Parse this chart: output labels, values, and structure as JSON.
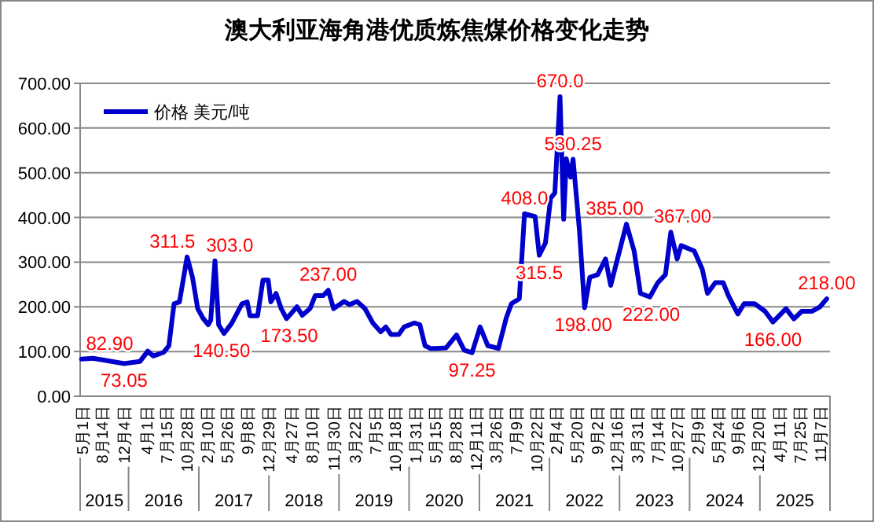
{
  "chart_data": {
    "type": "line",
    "title": "澳大利亚海角港优质炼焦煤价格变化走势",
    "x": [
      "2015-05-01",
      "2015-06-29",
      "2015-09-05",
      "2015-12-09",
      "2016-03-01",
      "2016-04-10",
      "2016-05-08",
      "2016-07-01",
      "2016-07-29",
      "2016-08-25",
      "2016-09-22",
      "2016-11-01",
      "2016-11-29",
      "2016-12-26",
      "2017-01-22",
      "2017-02-19",
      "2017-03-04",
      "2017-03-26",
      "2017-04-14",
      "2017-05-12",
      "2017-06-21",
      "2017-08-14",
      "2017-09-10",
      "2017-09-24",
      "2017-11-03",
      "2017-12-01",
      "2017-12-28",
      "2018-01-11",
      "2018-02-07",
      "2018-03-06",
      "2018-04-03",
      "2018-05-27",
      "2018-06-24",
      "2018-08-03",
      "2018-08-30",
      "2018-10-10",
      "2018-11-06",
      "2018-12-04",
      "2019-01-27",
      "2019-02-24",
      "2019-04-05",
      "2019-05-16",
      "2019-06-26",
      "2019-08-06",
      "2019-09-02",
      "2019-09-29",
      "2019-11-08",
      "2019-12-06",
      "2020-01-29",
      "2020-02-26",
      "2020-03-24",
      "2020-04-20",
      "2020-05-19",
      "2020-07-11",
      "2020-09-04",
      "2020-10-14",
      "2020-11-24",
      "2021-01-05",
      "2021-02-14",
      "2021-04-10",
      "2021-05-21",
      "2021-06-17",
      "2021-07-28",
      "2021-08-24",
      "2021-10-18",
      "2021-11-09",
      "2021-12-11",
      "2022-01-07",
      "2022-01-29",
      "2022-02-25",
      "2022-03-16",
      "2022-03-30",
      "2022-04-21",
      "2022-05-04",
      "2022-06-06",
      "2022-07-03",
      "2022-07-30",
      "2022-09-09",
      "2022-10-20",
      "2022-11-16",
      "2022-12-14",
      "2023-02-06",
      "2023-03-18",
      "2023-04-20",
      "2023-06-08",
      "2023-07-19",
      "2023-08-28",
      "2023-09-25",
      "2023-10-28",
      "2023-11-18",
      "2024-01-25",
      "2024-03-07",
      "2024-04-03",
      "2024-05-14",
      "2024-06-24",
      "2024-07-21",
      "2024-09-08",
      "2024-10-11",
      "2024-12-04",
      "2025-01-28",
      "2025-03-10",
      "2025-05-17",
      "2025-06-27",
      "2025-08-07",
      "2025-09-30",
      "2025-11-10",
      "2025-12-15"
    ],
    "series": [
      {
        "name": "价格 美元/吨",
        "color": "#0000cc",
        "values": [
          82.9,
          85,
          80,
          73.05,
          78,
          101,
          90,
          98,
          113,
          207,
          211,
          311.5,
          266,
          196,
          175,
          160,
          170,
          303,
          160,
          140.5,
          163,
          207,
          211,
          180,
          180,
          260,
          260,
          211,
          230,
          196,
          173.5,
          200,
          181,
          196,
          225,
          225,
          237,
          196,
          212,
          205,
          212,
          196,
          164,
          144,
          155,
          138,
          138,
          155,
          164,
          160,
          113,
          107,
          107,
          108,
          137,
          103,
          97.25,
          155,
          113,
          107,
          175,
          207,
          218,
          408,
          402,
          315.5,
          343,
          443,
          455,
          670,
          396,
          531,
          490,
          530.25,
          372,
          198,
          266,
          272,
          307,
          248,
          295,
          385,
          325,
          230,
          222,
          254,
          272,
          367,
          307,
          337,
          325,
          284,
          230,
          254,
          254,
          225,
          184,
          207,
          207,
          190,
          166,
          196,
          173,
          190,
          190,
          200,
          218
        ],
        "value_labels": [
          "82.90",
          null,
          null,
          "73.05",
          null,
          null,
          null,
          null,
          null,
          null,
          null,
          "311.5",
          null,
          null,
          null,
          null,
          null,
          "303.0",
          null,
          "140.50",
          null,
          null,
          null,
          null,
          null,
          null,
          null,
          null,
          null,
          null,
          "173.50",
          null,
          null,
          null,
          null,
          null,
          "237.00",
          null,
          null,
          null,
          null,
          null,
          null,
          null,
          null,
          null,
          null,
          null,
          null,
          null,
          null,
          null,
          null,
          null,
          null,
          null,
          "97.25",
          null,
          null,
          null,
          null,
          null,
          null,
          "408.0",
          null,
          "315.5",
          null,
          null,
          null,
          "670.0",
          null,
          null,
          null,
          "530.25",
          null,
          "198.00",
          null,
          null,
          null,
          null,
          null,
          "385.00",
          null,
          null,
          "222.00",
          null,
          null,
          "367.00",
          null,
          null,
          null,
          null,
          null,
          null,
          null,
          null,
          null,
          null,
          null,
          null,
          "166.00",
          null,
          null,
          null,
          null,
          null,
          "218.00"
        ]
      }
    ],
    "xlim": [
      "2015-04-24",
      "2026-01-01"
    ],
    "xticks": [
      {
        "value": "2015-05-01",
        "label": "5月1日"
      },
      {
        "value": "2015-08-14",
        "label": "8月14日"
      },
      {
        "value": "2015-12-04",
        "label": "12月4日"
      },
      {
        "value": "2016-04-01",
        "label": "4月1日"
      },
      {
        "value": "2016-07-15",
        "label": "7月15日"
      },
      {
        "value": "2016-10-28",
        "label": "10月28日"
      },
      {
        "value": "2017-02-10",
        "label": "2月10日"
      },
      {
        "value": "2017-05-26",
        "label": "5月26日"
      },
      {
        "value": "2017-09-08",
        "label": "9月8日"
      },
      {
        "value": "2017-12-29",
        "label": "12月29日"
      },
      {
        "value": "2018-04-27",
        "label": "4月27日"
      },
      {
        "value": "2018-08-10",
        "label": "8月10日"
      },
      {
        "value": "2018-11-30",
        "label": "11月30日"
      },
      {
        "value": "2019-03-22",
        "label": "3月22日"
      },
      {
        "value": "2019-07-05",
        "label": "7月5日"
      },
      {
        "value": "2019-10-18",
        "label": "10月18日"
      },
      {
        "value": "2020-01-31",
        "label": "1月31日"
      },
      {
        "value": "2020-05-15",
        "label": "5月15日"
      },
      {
        "value": "2020-08-28",
        "label": "8月28日"
      },
      {
        "value": "2020-12-11",
        "label": "12月11日"
      },
      {
        "value": "2021-03-26",
        "label": "3月26日"
      },
      {
        "value": "2021-07-09",
        "label": "7月9日"
      },
      {
        "value": "2021-10-22",
        "label": "10月22日"
      },
      {
        "value": "2022-02-04",
        "label": "2月4日"
      },
      {
        "value": "2022-05-20",
        "label": "5月20日"
      },
      {
        "value": "2022-09-02",
        "label": "9月2日"
      },
      {
        "value": "2022-12-16",
        "label": "12月16日"
      },
      {
        "value": "2023-03-31",
        "label": "3月31日"
      },
      {
        "value": "2023-07-14",
        "label": "7月14日"
      },
      {
        "value": "2023-10-27",
        "label": "10月27日"
      },
      {
        "value": "2024-02-09",
        "label": "2月9日"
      },
      {
        "value": "2024-05-24",
        "label": "5月24日"
      },
      {
        "value": "2024-09-06",
        "label": "9月6日"
      },
      {
        "value": "2024-12-20",
        "label": "12月20日"
      },
      {
        "value": "2025-04-11",
        "label": "4月11日"
      },
      {
        "value": "2025-07-25",
        "label": "7月25日"
      },
      {
        "value": "2025-11-07",
        "label": "11月7日"
      }
    ],
    "ylim": [
      0,
      700
    ],
    "yticks": [
      {
        "value": 0,
        "label": "0.00"
      },
      {
        "value": 100,
        "label": "100.00"
      },
      {
        "value": 200,
        "label": "200.00"
      },
      {
        "value": 300,
        "label": "300.00"
      },
      {
        "value": 400,
        "label": "400.00"
      },
      {
        "value": 500,
        "label": "500.00"
      },
      {
        "value": 600,
        "label": "600.00"
      },
      {
        "value": 700,
        "label": "700.00"
      }
    ],
    "grid": "y",
    "legend": "top left",
    "annotations": [
      "2015",
      "2016",
      "2017",
      "2018",
      "2019",
      "2020",
      "2021",
      "2022",
      "2023",
      "2024",
      "2025"
    ]
  }
}
